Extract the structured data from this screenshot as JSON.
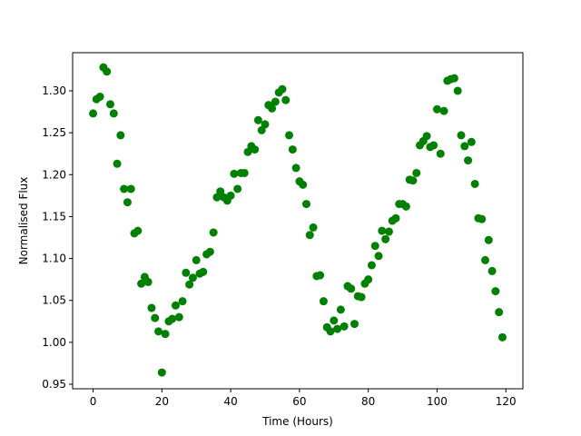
{
  "chart_data": {
    "type": "scatter",
    "xlabel": "Time (Hours)",
    "ylabel": "Normalised Flux",
    "color": "#008000",
    "x": [
      0,
      1,
      2,
      3,
      4,
      5,
      6,
      7,
      8,
      9,
      10,
      11,
      12,
      13,
      14,
      15,
      16,
      17,
      18,
      19,
      20,
      21,
      22,
      23,
      24,
      25,
      26,
      27,
      28,
      29,
      30,
      31,
      32,
      33,
      34,
      35,
      36,
      37,
      38,
      39,
      40,
      41,
      42,
      43,
      44,
      45,
      46,
      47,
      48,
      49,
      50,
      51,
      52,
      53,
      54,
      55,
      56,
      57,
      58,
      59,
      60,
      61,
      62,
      63,
      64,
      65,
      66,
      67,
      68,
      69,
      70,
      71,
      72,
      73,
      74,
      75,
      76,
      77,
      78,
      79,
      80,
      81,
      82,
      83,
      84,
      85,
      86,
      87,
      88,
      89,
      90,
      91,
      92,
      93,
      94,
      95,
      96,
      97,
      98,
      99,
      100,
      101,
      102,
      103,
      104,
      105,
      106,
      107,
      108,
      109,
      110,
      111,
      112,
      113,
      114,
      115,
      116,
      117,
      118,
      119
    ],
    "values": [
      1.273,
      1.29,
      1.293,
      1.328,
      1.323,
      1.284,
      1.273,
      1.213,
      1.247,
      1.183,
      1.167,
      1.183,
      1.13,
      1.133,
      1.07,
      1.078,
      1.072,
      1.041,
      1.029,
      1.013,
      0.964,
      1.01,
      1.025,
      1.028,
      1.044,
      1.03,
      1.049,
      1.083,
      1.069,
      1.077,
      1.098,
      1.082,
      1.084,
      1.105,
      1.108,
      1.131,
      1.173,
      1.18,
      1.173,
      1.169,
      1.175,
      1.201,
      1.183,
      1.202,
      1.202,
      1.227,
      1.234,
      1.23,
      1.265,
      1.253,
      1.26,
      1.283,
      1.279,
      1.287,
      1.298,
      1.302,
      1.289,
      1.247,
      1.23,
      1.208,
      1.192,
      1.188,
      1.165,
      1.128,
      1.137,
      1.079,
      1.08,
      1.049,
      1.018,
      1.013,
      1.026,
      1.016,
      1.039,
      1.019,
      1.067,
      1.064,
      1.022,
      1.055,
      1.054,
      1.07,
      1.075,
      1.092,
      1.115,
      1.103,
      1.133,
      1.123,
      1.132,
      1.145,
      1.148,
      1.165,
      1.165,
      1.162,
      1.194,
      1.193,
      1.202,
      1.235,
      1.24,
      1.246,
      1.233,
      1.235,
      1.278,
      1.225,
      1.276,
      1.312,
      1.314,
      1.315,
      1.3,
      1.247,
      1.234,
      1.217,
      1.239,
      1.189,
      1.148,
      1.147,
      1.098,
      1.122,
      1.085,
      1.061,
      1.036,
      1.006
    ],
    "xlim": [
      -5.95,
      124.95
    ],
    "xticks": [
      0,
      20,
      40,
      60,
      80,
      100,
      120
    ],
    "ylim": [
      0.9446,
      1.3455
    ],
    "yticks": [
      0.95,
      {
        "value": 1,
        "label": "1.00"
      },
      1.05,
      {
        "value": 1.1,
        "label": "1.10"
      },
      1.15,
      {
        "value": 1.2,
        "label": "1.20"
      },
      1.25,
      {
        "value": 1.3,
        "label": "1.30"
      }
    ]
  }
}
